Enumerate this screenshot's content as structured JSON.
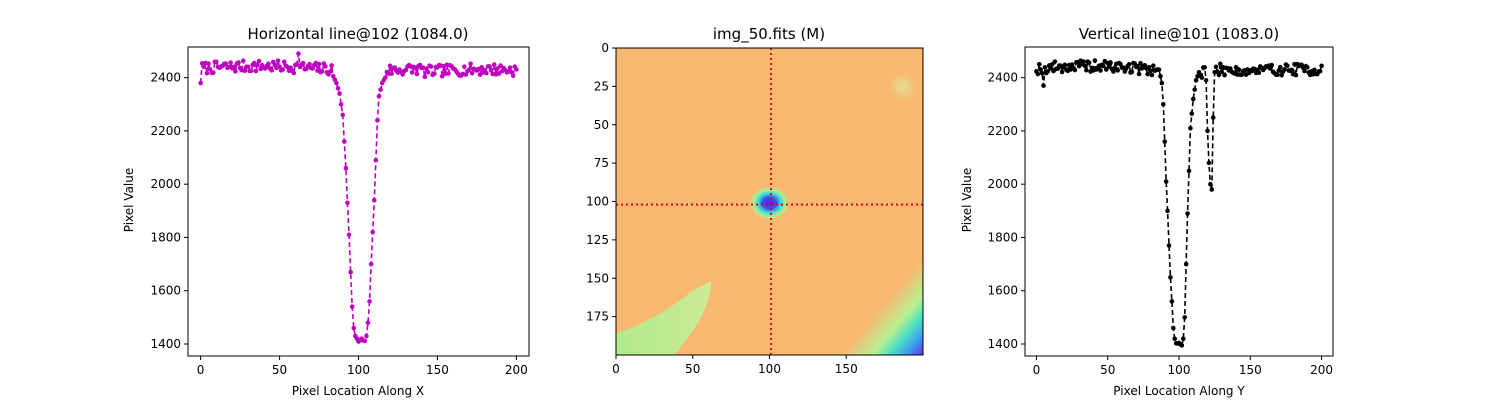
{
  "figure": {
    "background": "#ffffff"
  },
  "chart_data": [
    {
      "type": "line",
      "title": "Horizontal line@102 (1084.0)",
      "xlabel": "Pixel Location Along X",
      "ylabel": "Pixel Value",
      "xlim": [
        -8,
        208
      ],
      "ylim": [
        1355,
        2515
      ],
      "xticks": [
        0,
        50,
        100,
        150,
        200
      ],
      "yticks": [
        1400,
        1600,
        1800,
        2000,
        2200,
        2400
      ],
      "style": {
        "color": "#c000c0",
        "linestyle": "dashed",
        "marker": "dot"
      },
      "profile": {
        "baseline": 2435,
        "dip_center": 101,
        "dip_minimum": 1415,
        "rise_points": [
          [
            84,
            2405
          ],
          [
            86,
            2380
          ],
          [
            88,
            2340
          ],
          [
            90,
            2260
          ],
          [
            92,
            2060
          ],
          [
            93,
            1930
          ],
          [
            94,
            1810
          ],
          [
            95,
            1670
          ],
          [
            96,
            1540
          ],
          [
            97,
            1460
          ],
          [
            98,
            1430
          ]
        ],
        "fall_points": [
          [
            105,
            1430
          ],
          [
            106,
            1480
          ],
          [
            107,
            1560
          ],
          [
            108,
            1700
          ],
          [
            109,
            1820
          ],
          [
            110,
            1940
          ],
          [
            111,
            2090
          ],
          [
            112,
            2240
          ],
          [
            113,
            2330
          ],
          [
            115,
            2380
          ],
          [
            117,
            2400
          ]
        ],
        "noise_amplitude": 22,
        "outliers": [
          [
            0,
            2380
          ],
          [
            62,
            2490
          ]
        ]
      }
    },
    {
      "type": "heatmap",
      "title": "img_50.fits (M)",
      "xlim": [
        0,
        200
      ],
      "ylim": [
        200,
        0
      ],
      "xticks": [
        0,
        50,
        100,
        150
      ],
      "yticks": [
        0,
        25,
        50,
        75,
        100,
        125,
        150,
        175
      ],
      "colormap": "rainbow",
      "background_color": "#f8b870",
      "crosshair": {
        "x": 101,
        "y": 102,
        "color": "#dd0000",
        "linestyle": "dotted"
      },
      "star": {
        "x": 100,
        "y": 101,
        "core_color": "#6020e0",
        "ring_color": "#30d8e0",
        "glow_color": "#a8f090"
      },
      "features": {
        "faint_spot_top_right": {
          "x": 187,
          "y": 25
        },
        "green_band_bottom_left": "diagonal",
        "blue_corner_bottom_right": "gradient"
      }
    },
    {
      "type": "line",
      "title": "Vertical line@101 (1083.0)",
      "xlabel": "Pixel Location Along Y",
      "ylabel": "Pixel Value",
      "xlim": [
        -8,
        208
      ],
      "ylim": [
        1355,
        2515
      ],
      "xticks": [
        0,
        50,
        100,
        150,
        200
      ],
      "yticks": [
        1400,
        1600,
        1800,
        2000,
        2200,
        2400
      ],
      "style": {
        "color": "#000000",
        "linestyle": "dashed",
        "marker": "dot"
      },
      "profile": {
        "baseline": 2435,
        "dip_center": 101,
        "dip_minimum": 1400,
        "rise_points": [
          [
            86,
            2430
          ],
          [
            88,
            2380
          ],
          [
            89,
            2300
          ],
          [
            90,
            2160
          ],
          [
            91,
            2010
          ],
          [
            92,
            1900
          ],
          [
            93,
            1770
          ],
          [
            94,
            1650
          ],
          [
            95,
            1560
          ],
          [
            96,
            1460
          ],
          [
            97,
            1420
          ]
        ],
        "fall_points": [
          [
            103,
            1420
          ],
          [
            104,
            1500
          ],
          [
            105,
            1700
          ],
          [
            106,
            1890
          ],
          [
            107,
            2050
          ],
          [
            108,
            2210
          ],
          [
            110,
            2320
          ],
          [
            112,
            2390
          ],
          [
            114,
            2420
          ],
          [
            116,
            2400
          ]
        ],
        "noise_amplitude": 22,
        "secondary_dip": [
          [
            119,
            2390
          ],
          [
            120,
            2200
          ],
          [
            121,
            2080
          ],
          [
            122,
            2000
          ],
          [
            123,
            1980
          ],
          [
            124,
            2250
          ],
          [
            125,
            2420
          ]
        ],
        "outliers": [
          [
            5,
            2370
          ]
        ]
      }
    }
  ]
}
